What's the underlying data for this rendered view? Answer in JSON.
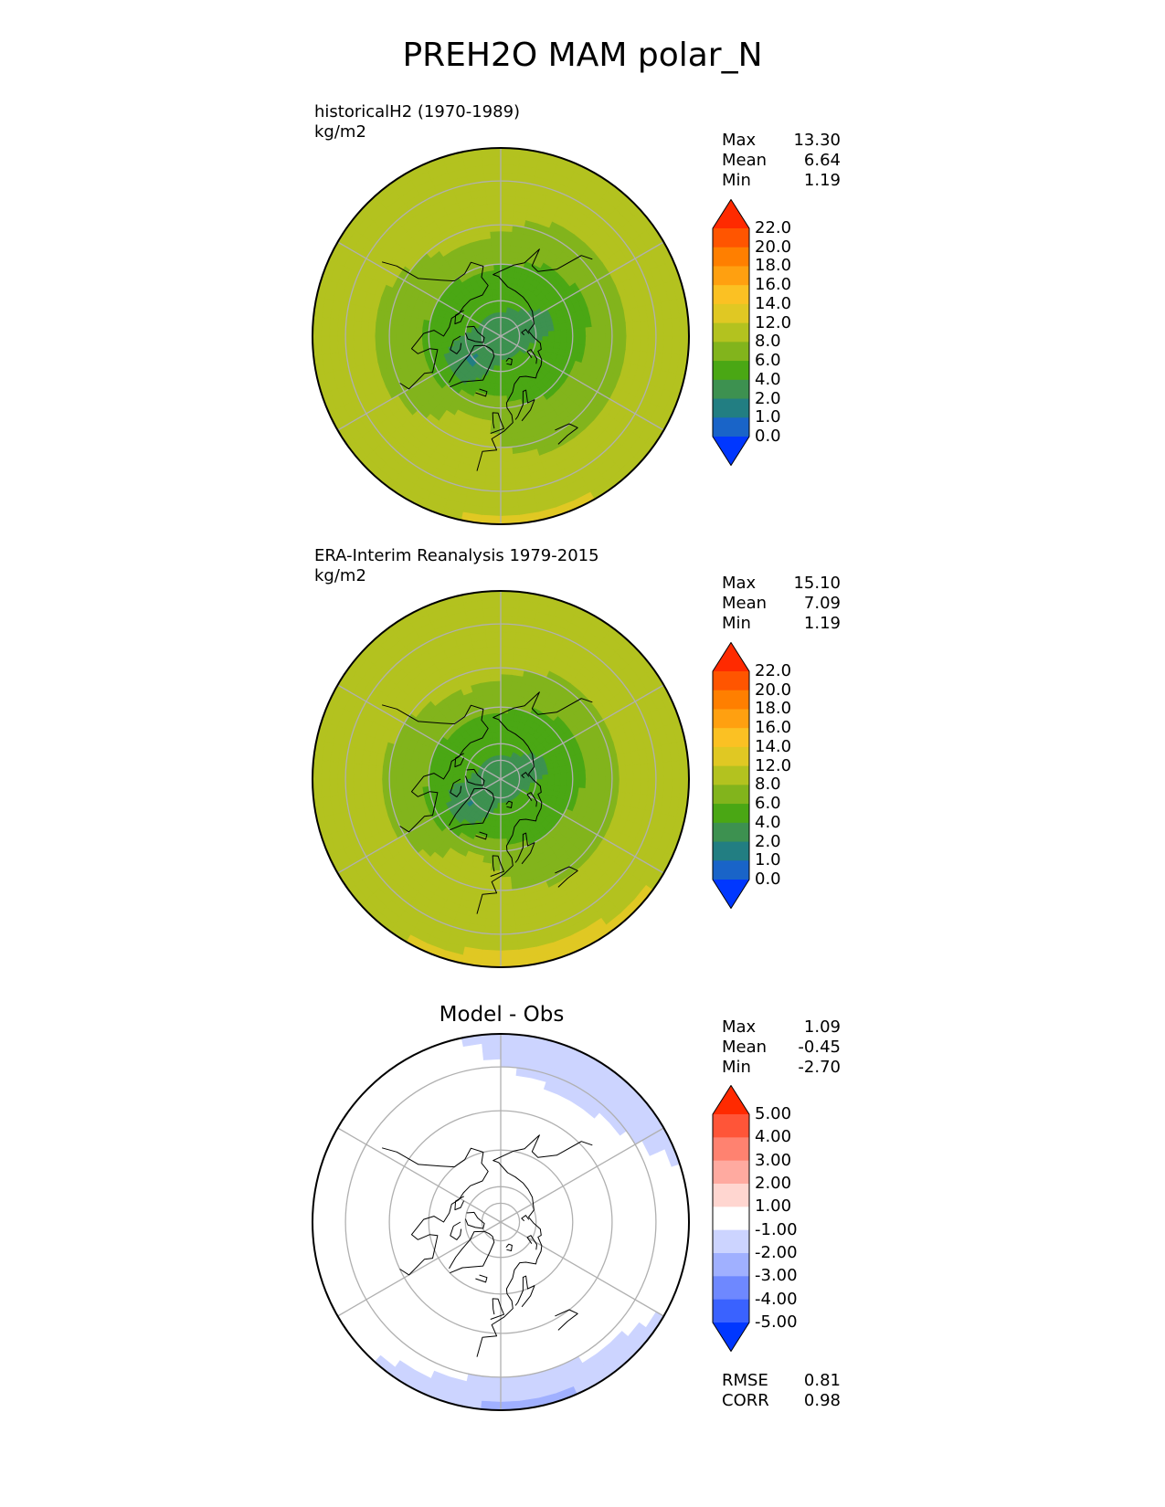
{
  "page_title": "PREH2O MAM polar_N",
  "chart_data": [
    {
      "type": "heatmap",
      "projection": "north-polar-stereographic",
      "title": "historicalH2 (1970-1989)",
      "units": "kg/m2",
      "stats": {
        "max_label": "Max",
        "max": "13.30",
        "mean_label": "Mean",
        "mean": "6.64",
        "min_label": "Min",
        "min": "1.19"
      },
      "colorbar": {
        "labels": [
          "22.0",
          "20.0",
          "18.0",
          "16.0",
          "14.0",
          "12.0",
          "8.0",
          "6.0",
          "4.0",
          "2.0",
          "1.0",
          "0.0"
        ],
        "colors": [
          "#ff2a00",
          "#ff5500",
          "#ff7f00",
          "#ffa010",
          "#fbc123",
          "#e0c823",
          "#b3c21f",
          "#82b41c",
          "#4aa714",
          "#3d9150",
          "#227e82",
          "#1964c8",
          "#0037ff"
        ]
      },
      "field": {
        "pole_value": 3.0,
        "atlantic_value": 1.5,
        "edge_value": 11.0,
        "south_edge_value": 13.0
      }
    },
    {
      "type": "heatmap",
      "projection": "north-polar-stereographic",
      "title": "ERA-Interim Reanalysis 1979-2015",
      "units": "kg/m2",
      "stats": {
        "max_label": "Max",
        "max": "15.10",
        "mean_label": "Mean",
        "mean": "7.09",
        "min_label": "Min",
        "min": "1.19"
      },
      "colorbar": {
        "labels": [
          "22.0",
          "20.0",
          "18.0",
          "16.0",
          "14.0",
          "12.0",
          "8.0",
          "6.0",
          "4.0",
          "2.0",
          "1.0",
          "0.0"
        ],
        "colors": [
          "#ff2a00",
          "#ff5500",
          "#ff7f00",
          "#ffa010",
          "#fbc123",
          "#e0c823",
          "#b3c21f",
          "#82b41c",
          "#4aa714",
          "#3d9150",
          "#227e82",
          "#1964c8",
          "#0037ff"
        ]
      },
      "field": {
        "pole_value": 3.0,
        "atlantic_value": 2.5,
        "edge_value": 11.5,
        "south_edge_value": 14.5
      }
    },
    {
      "type": "heatmap",
      "projection": "north-polar-stereographic",
      "title": "Model - Obs",
      "units": "",
      "stats": {
        "max_label": "Max",
        "max": "1.09",
        "mean_label": "Mean",
        "mean": "-0.45",
        "min_label": "Min",
        "min": "-2.70"
      },
      "colorbar": {
        "labels": [
          "5.00",
          "4.00",
          "3.00",
          "2.00",
          "1.00",
          "-1.00",
          "-2.00",
          "-3.00",
          "-4.00",
          "-5.00"
        ],
        "colors": [
          "#ff2a00",
          "#ff5538",
          "#ff8270",
          "#ffaaa0",
          "#ffd6d0",
          "#ffffff",
          "#ccd4ff",
          "#a0b0ff",
          "#6e88ff",
          "#3a62ff",
          "#0037ff"
        ]
      },
      "scores": {
        "rmse_label": "RMSE",
        "rmse": "0.81",
        "corr_label": "CORR",
        "corr": "0.98"
      }
    }
  ]
}
